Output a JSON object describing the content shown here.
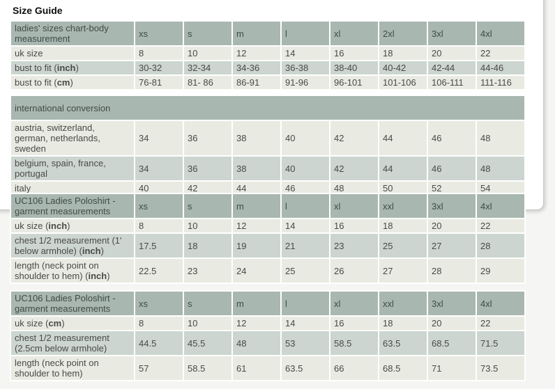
{
  "title": "Size Guide",
  "colors": {
    "page-bg": "#f5f5f3",
    "panel-bg": "#ffffff",
    "panel-border": "#c9c9c9",
    "header-bg": "#a9b7b1",
    "row-light": "#e9eae2",
    "row-dark": "#ccd5d0"
  },
  "tables": [
    {
      "id": "ladies-sizes-body-measurement",
      "header_label": [
        {
          "t": "ladies' sizes chart-body measurement"
        }
      ],
      "columns": [
        "xs",
        "s",
        "m",
        "l",
        "xl",
        "2xl",
        "3xl",
        "4xl"
      ],
      "rows": [
        {
          "label": [
            {
              "t": "uk size"
            }
          ],
          "values": [
            "8",
            "10",
            "12",
            "14",
            "16",
            "18",
            "20",
            "22"
          ]
        },
        {
          "label": [
            {
              "t": "bust to fit ("
            },
            {
              "t": "inch",
              "b": true
            },
            {
              "t": ")"
            }
          ],
          "values": [
            "30-32",
            "32-34",
            "34-36",
            "36-38",
            "38-40",
            "40-42",
            "42-44",
            "44-46"
          ]
        },
        {
          "label": [
            {
              "t": "bust to fit ("
            },
            {
              "t": "cm",
              "b": true
            },
            {
              "t": ")"
            }
          ],
          "values": [
            "76-81",
            "81- 86",
            "86-91",
            "91-96",
            "96-101",
            "101-106",
            "106-111",
            "111-116"
          ]
        }
      ]
    },
    {
      "id": "international-conversion",
      "header_label": [
        {
          "t": "international conversion"
        }
      ],
      "columns": [],
      "rows": [
        {
          "label": [
            {
              "t": "austria, switzerland, german, netherlands, sweden"
            }
          ],
          "values": [
            "34",
            "36",
            "38",
            "40",
            "42",
            "44",
            "46",
            "48"
          ]
        },
        {
          "label": [
            {
              "t": "belgium, spain, france, portugal"
            }
          ],
          "values": [
            "34",
            "36",
            "38",
            "40",
            "42",
            "44",
            "46",
            "48"
          ]
        },
        {
          "label": [
            {
              "t": "italy"
            }
          ],
          "values": [
            "40",
            "42",
            "44",
            "46",
            "48",
            "50",
            "52",
            "54"
          ]
        }
      ]
    },
    {
      "id": "poloshirt-garment-measurements-inch",
      "header_label": [
        {
          "t": "UC106 Ladies Poloshirt - garment measurements"
        }
      ],
      "columns": [
        "xs",
        "s",
        "m",
        "l",
        "xl",
        "xxl",
        "3xl",
        "4xl"
      ],
      "rows": [
        {
          "label": [
            {
              "t": "uk size ("
            },
            {
              "t": "inch",
              "b": true
            },
            {
              "t": ")"
            }
          ],
          "values": [
            "8",
            "10",
            "12",
            "14",
            "16",
            "18",
            "20",
            "22"
          ]
        },
        {
          "label": [
            {
              "t": "chest 1/2 measurement (1' below armhole) ("
            },
            {
              "t": "inch",
              "b": true
            },
            {
              "t": ")"
            }
          ],
          "values": [
            "17.5",
            "18",
            "19",
            "21",
            "23",
            "25",
            "27",
            "28"
          ]
        },
        {
          "label": [
            {
              "t": "length (neck point on shoulder to hem) ("
            },
            {
              "t": "inch",
              "b": true
            },
            {
              "t": ")"
            }
          ],
          "values": [
            "22.5",
            "23",
            "24",
            "25",
            "26",
            "27",
            "28",
            "29"
          ]
        }
      ]
    },
    {
      "id": "poloshirt-garment-measurements-cm",
      "header_label": [
        {
          "t": "UC106 Ladies Poloshirt - garment measurements"
        }
      ],
      "columns": [
        "xs",
        "s",
        "m",
        "l",
        "xl",
        "xxl",
        "3xl",
        "4xl"
      ],
      "rows": [
        {
          "label": [
            {
              "t": "uk size ("
            },
            {
              "t": "cm",
              "b": true
            },
            {
              "t": ")"
            }
          ],
          "values": [
            "8",
            "10",
            "12",
            "14",
            "16",
            "18",
            "20",
            "22"
          ]
        },
        {
          "label": [
            {
              "t": "chest 1/2 measurement (2.5cm below armhole)"
            }
          ],
          "values": [
            "44.5",
            "45.5",
            "48",
            "53",
            "58.5",
            "63.5",
            "68.5",
            "71.5"
          ]
        },
        {
          "label": [
            {
              "t": "length (neck point on shoulder to hem)"
            }
          ],
          "values": [
            "57",
            "58.5",
            "61",
            "63.5",
            "66",
            "68.5",
            "71",
            "73.5"
          ]
        }
      ]
    }
  ]
}
